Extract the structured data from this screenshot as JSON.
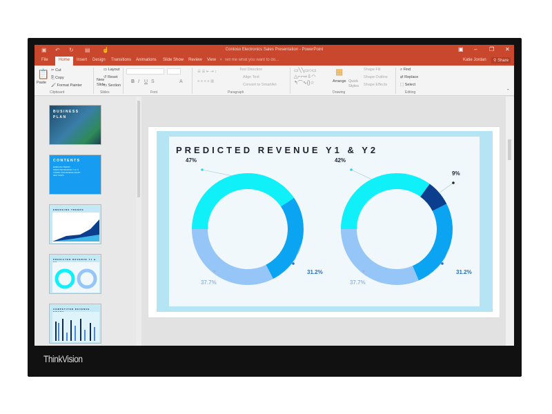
{
  "window": {
    "title": "Contoso Electronics Sales Presentation - PowerPoint",
    "user": "Katie Jordan",
    "share": "Share"
  },
  "tabs": [
    "File",
    "Home",
    "Insert",
    "Design",
    "Transitions",
    "Animations",
    "Slide Show",
    "Review",
    "View"
  ],
  "tell_me": "Tell me what you want to do...",
  "ribbon": {
    "clipboard": {
      "paste": "Paste",
      "cut": "Cut",
      "copy": "Copy",
      "format_painter": "Format Painter",
      "label": "Clipboard"
    },
    "slides": {
      "new_slide": "New Slide",
      "layout": "Layout",
      "reset": "Reset",
      "section": "Section",
      "label": "Slides"
    },
    "font": {
      "label": "Font"
    },
    "paragraph": {
      "text_direction": "Text Direction",
      "align_text": "Align Text",
      "convert": "Convert to SmartArt",
      "label": "Paragraph"
    },
    "drawing": {
      "arrange": "Arrange",
      "quick_styles": "Quick Styles",
      "shape_fill": "Shape Fill",
      "shape_outline": "Shape Outline",
      "shape_effects": "Shape Effects",
      "label": "Drawing"
    },
    "editing": {
      "find": "Find",
      "replace": "Replace",
      "select": "Select",
      "label": "Editing"
    }
  },
  "thumbnails": [
    {
      "title": "BUSINESS PLAN"
    },
    {
      "title": "CONTENTS",
      "items": [
        "EMERGING TRENDS",
        "PREDICTED REVENUE Y1 & Y2",
        "COMPETITIVE REVENUE GRAPH",
        "NEXT STEPS"
      ]
    },
    {
      "title": "EMERGING TRENDS"
    },
    {
      "title": "PREDICTED REVENUE Y1 & Y2"
    },
    {
      "title": "COMPETITOR REVENUE GRAPH"
    }
  ],
  "slide": {
    "title": "PREDICTED REVENUE Y1 & Y2"
  },
  "chart_data": [
    {
      "type": "pie",
      "donut": true,
      "labels": [
        "47%",
        "31.2%",
        "37.7%"
      ],
      "values": [
        47,
        31.2,
        37.7
      ],
      "colors": [
        "#0ff0f8",
        "#0aa4f2",
        "#96c5f8"
      ]
    },
    {
      "type": "pie",
      "donut": true,
      "labels": [
        "42%",
        "9%",
        "31.2%",
        "37.7%"
      ],
      "values": [
        42,
        9,
        31.2,
        37.7
      ],
      "colors": [
        "#0ff0f8",
        "#0b3e8c",
        "#0aa4f2",
        "#96c5f8"
      ]
    }
  ],
  "brand": "ThinkVision",
  "colors": {
    "accent": "#c9472c"
  }
}
